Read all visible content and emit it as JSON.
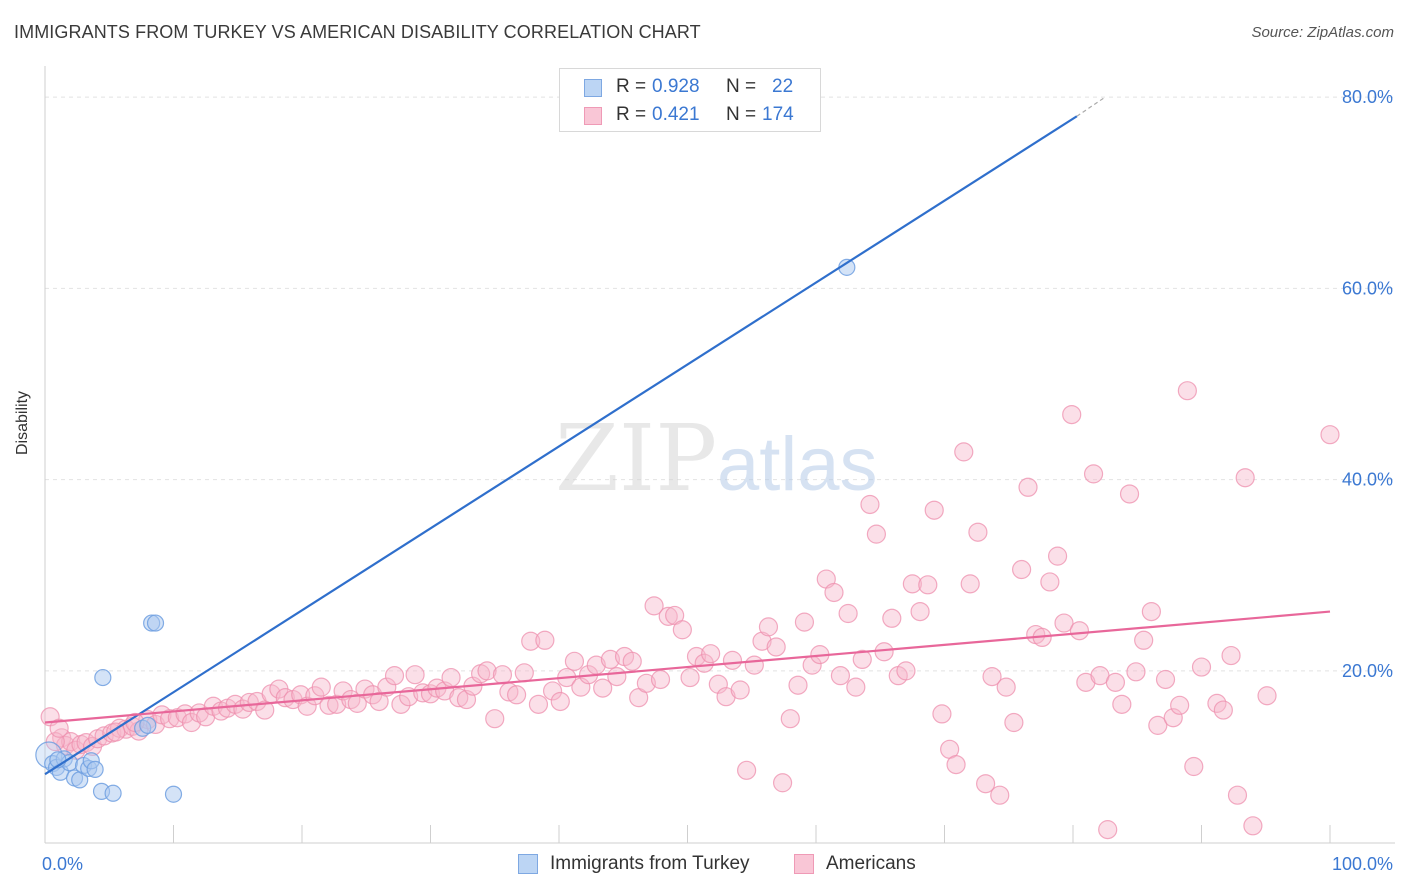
{
  "header": {
    "title": "IMMIGRANTS FROM TURKEY VS AMERICAN DISABILITY CORRELATION CHART",
    "source": "Source: ZipAtlas.com"
  },
  "legend": {
    "series1": {
      "r_label": "R =",
      "r_value": "0.928",
      "n_label": "N =",
      "n_value": "22"
    },
    "series2": {
      "r_label": "R =",
      "r_value": "0.421",
      "n_label": "N =",
      "n_value": "174"
    }
  },
  "watermark": {
    "zip": "ZIP",
    "atlas": "atlas"
  },
  "colors": {
    "blue_fill": "#a9c8f0",
    "blue_stroke": "#6f9fe0",
    "blue_line": "#2f6fcc",
    "pink_fill": "#f7b8cb",
    "pink_stroke": "#ee8fae",
    "pink_line": "#e8679a",
    "tick_label": "#3b78d2",
    "grid": "#e2e2e2"
  },
  "chart_data": {
    "type": "scatter",
    "title": "IMMIGRANTS FROM TURKEY VS AMERICAN DISABILITY CORRELATION CHART",
    "xlabel": "",
    "ylabel": "Disability",
    "xlim": [
      0,
      100
    ],
    "ylim": [
      2,
      82
    ],
    "x_tick_labels": [
      {
        "value": 0,
        "label": "0.0%"
      },
      {
        "value": 100,
        "label": "100.0%"
      }
    ],
    "y_tick_labels": [
      {
        "value": 20,
        "label": "20.0%"
      },
      {
        "value": 40,
        "label": "40.0%"
      },
      {
        "value": 60,
        "label": "60.0%"
      },
      {
        "value": 80,
        "label": "80.0%"
      }
    ],
    "grid": true,
    "legend_position": "bottom-center",
    "series": [
      {
        "name": "Immigrants from Turkey",
        "color": "#6f9fe0",
        "trend": {
          "x0": 0,
          "y0": 9.2,
          "x1": 80.3,
          "y1": 78.0,
          "dash_to_x": 82.5,
          "dash_to_y": 80.0
        },
        "points": [
          [
            0.3,
            11.2
          ],
          [
            0.6,
            10.3
          ],
          [
            0.9,
            9.9
          ],
          [
            1.2,
            9.4
          ],
          [
            1.5,
            10.8
          ],
          [
            1.9,
            10.4
          ],
          [
            2.3,
            8.8
          ],
          [
            2.7,
            8.6
          ],
          [
            3.0,
            10.1
          ],
          [
            3.4,
            9.8
          ],
          [
            3.6,
            10.6
          ],
          [
            3.9,
            9.7
          ],
          [
            4.4,
            7.4
          ],
          [
            5.3,
            7.2
          ],
          [
            7.6,
            14.0
          ],
          [
            8.0,
            14.3
          ],
          [
            8.3,
            25.0
          ],
          [
            8.6,
            25.0
          ],
          [
            10.0,
            7.1
          ],
          [
            4.5,
            19.3
          ],
          [
            62.4,
            62.2
          ],
          [
            1.0,
            10.7
          ]
        ]
      },
      {
        "name": "Americans",
        "color": "#ee8fae",
        "trend": {
          "x0": 0,
          "y0": 14.6,
          "x1": 100,
          "y1": 26.2
        },
        "points": [
          [
            0.4,
            15.2
          ],
          [
            1.3,
            13.0
          ],
          [
            1.6,
            12.2
          ],
          [
            2.0,
            12.6
          ],
          [
            2.4,
            11.7
          ],
          [
            2.8,
            12.3
          ],
          [
            3.2,
            12.5
          ],
          [
            3.7,
            12.1
          ],
          [
            4.1,
            12.9
          ],
          [
            4.6,
            13.2
          ],
          [
            5.2,
            13.5
          ],
          [
            5.8,
            14.0
          ],
          [
            6.3,
            13.9
          ],
          [
            6.8,
            14.2
          ],
          [
            7.3,
            13.7
          ],
          [
            8.0,
            14.9
          ],
          [
            8.6,
            14.4
          ],
          [
            9.1,
            15.4
          ],
          [
            9.7,
            15.0
          ],
          [
            10.3,
            15.1
          ],
          [
            10.9,
            15.5
          ],
          [
            11.4,
            14.6
          ],
          [
            12.0,
            15.6
          ],
          [
            12.5,
            15.2
          ],
          [
            13.1,
            16.3
          ],
          [
            13.7,
            15.8
          ],
          [
            14.2,
            16.1
          ],
          [
            14.8,
            16.5
          ],
          [
            15.4,
            16.0
          ],
          [
            15.9,
            16.7
          ],
          [
            16.5,
            16.8
          ],
          [
            17.1,
            15.9
          ],
          [
            17.6,
            17.6
          ],
          [
            18.2,
            18.1
          ],
          [
            18.7,
            17.2
          ],
          [
            19.3,
            17.0
          ],
          [
            19.9,
            17.5
          ],
          [
            20.4,
            16.3
          ],
          [
            21.0,
            17.4
          ],
          [
            21.5,
            18.3
          ],
          [
            22.1,
            16.4
          ],
          [
            22.7,
            16.5
          ],
          [
            23.2,
            17.9
          ],
          [
            23.8,
            17.0
          ],
          [
            24.3,
            16.6
          ],
          [
            24.9,
            18.1
          ],
          [
            25.5,
            17.5
          ],
          [
            26.0,
            16.8
          ],
          [
            26.6,
            18.3
          ],
          [
            27.2,
            19.5
          ],
          [
            27.7,
            16.5
          ],
          [
            28.3,
            17.3
          ],
          [
            28.8,
            19.6
          ],
          [
            29.4,
            17.7
          ],
          [
            30.0,
            17.6
          ],
          [
            30.5,
            18.2
          ],
          [
            31.1,
            17.9
          ],
          [
            31.6,
            19.3
          ],
          [
            32.2,
            17.2
          ],
          [
            32.8,
            17.0
          ],
          [
            33.3,
            18.4
          ],
          [
            33.9,
            19.7
          ],
          [
            34.4,
            20.0
          ],
          [
            35.0,
            15.0
          ],
          [
            35.6,
            19.6
          ],
          [
            36.1,
            17.8
          ],
          [
            36.7,
            17.5
          ],
          [
            37.3,
            19.8
          ],
          [
            37.8,
            23.1
          ],
          [
            38.4,
            16.5
          ],
          [
            38.9,
            23.2
          ],
          [
            39.5,
            17.9
          ],
          [
            40.1,
            16.8
          ],
          [
            40.6,
            19.3
          ],
          [
            41.2,
            21.0
          ],
          [
            41.7,
            18.3
          ],
          [
            42.3,
            19.6
          ],
          [
            42.9,
            20.6
          ],
          [
            43.4,
            18.2
          ],
          [
            44.0,
            21.2
          ],
          [
            44.5,
            19.4
          ],
          [
            45.1,
            21.5
          ],
          [
            45.7,
            21.0
          ],
          [
            46.2,
            17.2
          ],
          [
            46.8,
            18.7
          ],
          [
            47.4,
            26.8
          ],
          [
            47.9,
            19.1
          ],
          [
            48.5,
            25.7
          ],
          [
            49.0,
            25.8
          ],
          [
            49.6,
            24.3
          ],
          [
            50.2,
            19.3
          ],
          [
            50.7,
            21.5
          ],
          [
            51.3,
            20.8
          ],
          [
            51.8,
            21.8
          ],
          [
            52.4,
            18.6
          ],
          [
            53.0,
            17.3
          ],
          [
            53.5,
            21.1
          ],
          [
            54.1,
            18.0
          ],
          [
            54.6,
            9.6
          ],
          [
            55.2,
            20.6
          ],
          [
            55.8,
            23.1
          ],
          [
            56.3,
            24.6
          ],
          [
            56.9,
            22.5
          ],
          [
            57.4,
            8.3
          ],
          [
            58.0,
            15.0
          ],
          [
            58.6,
            18.5
          ],
          [
            59.1,
            25.1
          ],
          [
            59.7,
            20.6
          ],
          [
            60.3,
            21.7
          ],
          [
            60.8,
            29.6
          ],
          [
            61.4,
            28.2
          ],
          [
            61.9,
            19.5
          ],
          [
            62.5,
            26.0
          ],
          [
            63.1,
            18.3
          ],
          [
            63.6,
            21.2
          ],
          [
            64.2,
            37.4
          ],
          [
            64.7,
            34.3
          ],
          [
            65.3,
            22.0
          ],
          [
            65.9,
            25.5
          ],
          [
            66.4,
            19.5
          ],
          [
            67.0,
            20.0
          ],
          [
            67.5,
            29.1
          ],
          [
            68.1,
            26.2
          ],
          [
            68.7,
            29.0
          ],
          [
            69.2,
            36.8
          ],
          [
            69.8,
            15.5
          ],
          [
            70.4,
            11.8
          ],
          [
            70.9,
            10.2
          ],
          [
            71.5,
            42.9
          ],
          [
            72.0,
            29.1
          ],
          [
            72.6,
            34.5
          ],
          [
            73.2,
            8.2
          ],
          [
            73.7,
            19.4
          ],
          [
            74.3,
            7.0
          ],
          [
            74.8,
            18.3
          ],
          [
            75.4,
            14.6
          ],
          [
            76.0,
            30.6
          ],
          [
            76.5,
            39.2
          ],
          [
            77.1,
            23.8
          ],
          [
            77.6,
            23.5
          ],
          [
            78.2,
            29.3
          ],
          [
            78.8,
            32.0
          ],
          [
            79.3,
            25.0
          ],
          [
            79.9,
            46.8
          ],
          [
            80.5,
            24.2
          ],
          [
            81.0,
            18.8
          ],
          [
            81.6,
            40.6
          ],
          [
            82.1,
            19.5
          ],
          [
            82.7,
            3.4
          ],
          [
            83.3,
            18.8
          ],
          [
            83.8,
            16.5
          ],
          [
            84.4,
            38.5
          ],
          [
            84.9,
            19.9
          ],
          [
            85.5,
            23.2
          ],
          [
            86.1,
            26.2
          ],
          [
            86.6,
            14.3
          ],
          [
            87.2,
            19.1
          ],
          [
            87.8,
            15.1
          ],
          [
            88.3,
            16.4
          ],
          [
            88.9,
            49.3
          ],
          [
            89.4,
            10.0
          ],
          [
            90.0,
            20.4
          ],
          [
            91.2,
            16.6
          ],
          [
            91.7,
            15.9
          ],
          [
            92.3,
            21.6
          ],
          [
            92.8,
            7.0
          ],
          [
            93.4,
            40.2
          ],
          [
            94.0,
            3.8
          ],
          [
            95.1,
            17.4
          ],
          [
            100.0,
            44.7
          ],
          [
            0.8,
            12.6
          ],
          [
            1.1,
            14.0
          ],
          [
            5.5,
            13.6
          ],
          [
            7.0,
            14.6
          ]
        ]
      }
    ]
  },
  "bottom_legend": {
    "item1": "Immigrants from Turkey",
    "item2": "Americans"
  }
}
